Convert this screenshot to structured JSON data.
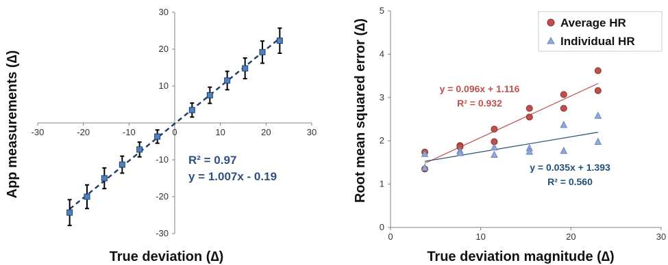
{
  "chart_data": [
    {
      "type": "scatter",
      "title": "",
      "xlabel": "True deviation (∆)",
      "ylabel": "App measurements (∆)",
      "xlim": [
        -30,
        30
      ],
      "ylim": [
        -30,
        30
      ],
      "xticks": [
        "-30",
        "-20",
        "-10",
        "0",
        "10",
        "20",
        "30"
      ],
      "yticks": [
        "-30",
        "-20",
        "-10",
        "0",
        "10",
        "20",
        "30"
      ],
      "points": [
        {
          "x": -23,
          "y": -24.3,
          "err": 3.5
        },
        {
          "x": -19.2,
          "y": -20,
          "err": 3.2
        },
        {
          "x": -15.4,
          "y": -15,
          "err": 2.8
        },
        {
          "x": -11.5,
          "y": -11.3,
          "err": 2.3
        },
        {
          "x": -7.7,
          "y": -7.2,
          "err": 2.0
        },
        {
          "x": -3.8,
          "y": -3.7,
          "err": 1.8
        },
        {
          "x": 3.8,
          "y": 3.5,
          "err": 1.9
        },
        {
          "x": 7.7,
          "y": 7.5,
          "err": 2.2
        },
        {
          "x": 11.5,
          "y": 11.5,
          "err": 2.5
        },
        {
          "x": 15.4,
          "y": 14.8,
          "err": 2.8
        },
        {
          "x": 19.2,
          "y": 19.2,
          "err": 3.0
        },
        {
          "x": 23,
          "y": 22.3,
          "err": 3.4
        }
      ],
      "trendline": {
        "slope": 1.007,
        "intercept": -0.19,
        "style": "dashed"
      },
      "annotations": {
        "r2": "R² = 0.97",
        "equation": "y = 1.007x - 0.19"
      },
      "colors": {
        "marker": "#4f81bd",
        "line": "#1f3e6e",
        "annotation": "#2f4f7f"
      }
    },
    {
      "type": "scatter",
      "title": "",
      "xlabel": "True deviation magnitude (∆)",
      "ylabel": "Root mean squared error (∆)",
      "xlim": [
        0,
        30
      ],
      "ylim": [
        0,
        5
      ],
      "xticks": [
        "0",
        "10",
        "20",
        "30"
      ],
      "yticks": [
        "0",
        "1",
        "2",
        "3",
        "4",
        "5"
      ],
      "series": [
        {
          "name": "Average HR",
          "marker": "circle",
          "color": "#c0504d",
          "points": [
            {
              "x": 3.8,
              "y": 1.74
            },
            {
              "x": 3.8,
              "y": 1.35
            },
            {
              "x": 7.7,
              "y": 1.89
            },
            {
              "x": 7.7,
              "y": 1.86
            },
            {
              "x": 11.5,
              "y": 2.27
            },
            {
              "x": 11.5,
              "y": 1.98
            },
            {
              "x": 15.4,
              "y": 2.75
            },
            {
              "x": 15.4,
              "y": 2.55
            },
            {
              "x": 19.2,
              "y": 3.07
            },
            {
              "x": 19.2,
              "y": 2.75
            },
            {
              "x": 23,
              "y": 3.62
            },
            {
              "x": 23,
              "y": 3.16
            }
          ],
          "trendline": {
            "slope": 0.096,
            "intercept": 1.116,
            "x_range": [
              3.8,
              23
            ]
          },
          "annotation": {
            "equation": "y = 0.096x + 1.116",
            "r2": "R² = 0.932"
          }
        },
        {
          "name": "Individual HR",
          "marker": "triangle",
          "color": "#8ea9db",
          "points": [
            {
              "x": 3.8,
              "y": 1.7
            },
            {
              "x": 3.8,
              "y": 1.38
            },
            {
              "x": 7.7,
              "y": 1.77
            },
            {
              "x": 7.7,
              "y": 1.72
            },
            {
              "x": 11.5,
              "y": 1.85
            },
            {
              "x": 11.5,
              "y": 1.68
            },
            {
              "x": 15.4,
              "y": 1.83
            },
            {
              "x": 15.4,
              "y": 1.75
            },
            {
              "x": 19.2,
              "y": 2.37
            },
            {
              "x": 19.2,
              "y": 1.77
            },
            {
              "x": 23,
              "y": 2.58
            },
            {
              "x": 23,
              "y": 1.98
            }
          ],
          "trendline": {
            "slope": 0.035,
            "intercept": 1.393,
            "x_range": [
              3.8,
              23
            ]
          },
          "annotation": {
            "equation": "y = 0.035x + 1.393",
            "r2": "R² = 0.560"
          },
          "line_color": "#1f4e79"
        }
      ],
      "legend_position": "top-right"
    }
  ]
}
